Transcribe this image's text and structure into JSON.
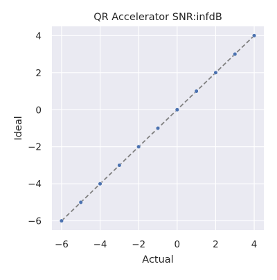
{
  "chart_data": {
    "type": "scatter",
    "title": "QR Accelerator SNR:infdB",
    "xlabel": "Actual",
    "ylabel": "Ideal",
    "xlim": [
      -6.5,
      4.5
    ],
    "ylim": [
      -6.5,
      4.5
    ],
    "x_ticks": [
      -6,
      -4,
      -2,
      0,
      2,
      4
    ],
    "y_ticks": [
      -6,
      -4,
      -2,
      0,
      2,
      4
    ],
    "x_tick_labels": [
      "−6",
      "−4",
      "−2",
      "0",
      "2",
      "4"
    ],
    "y_tick_labels": [
      "−6",
      "−4",
      "−2",
      "0",
      "2",
      "4"
    ],
    "grid": true,
    "background": "#eaeaf2",
    "grid_color": "#ffffff",
    "point_color": "#4c72b0",
    "line_color": "#808080",
    "series": [
      {
        "type": "scatter",
        "x": [
          -6,
          -5,
          -4,
          -3,
          -2,
          -1,
          0,
          1,
          2,
          3,
          4
        ],
        "y": [
          -6,
          -5,
          -4,
          -3,
          -2,
          -1,
          0,
          1,
          2,
          3,
          4
        ]
      }
    ],
    "reference_line": {
      "x": [
        -6,
        4
      ],
      "y": [
        -6,
        4
      ],
      "style": "dashed"
    }
  }
}
